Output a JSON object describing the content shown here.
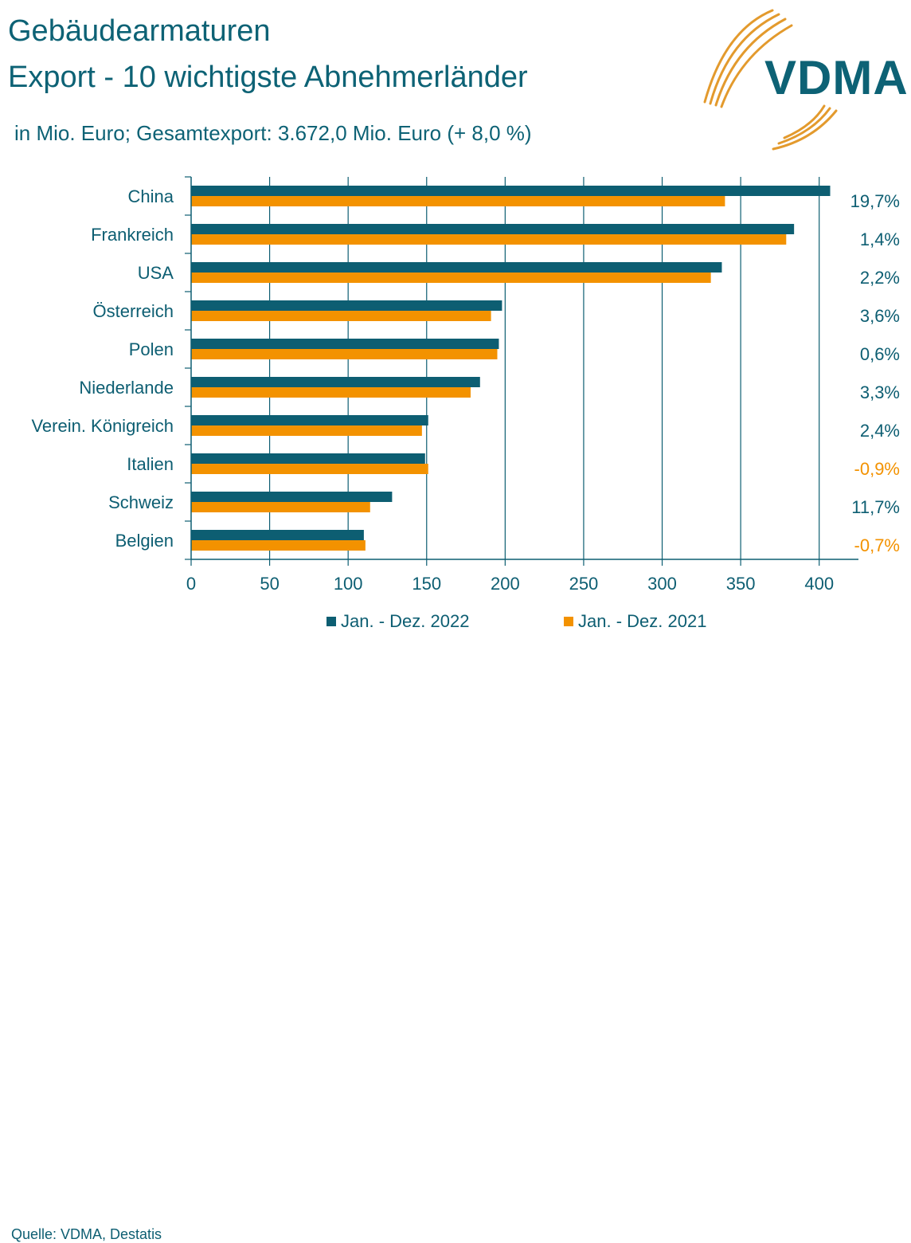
{
  "header": {
    "title_line1": "Gebäudearmaturen",
    "title_line2": "Export - 10 wichtigste Abnehmerländer",
    "subtitle": "in Mio. Euro; Gesamtexport: 3.672,0 Mio. Euro (+ 8,0 %)"
  },
  "logo": {
    "text": "VDMA",
    "icon": "vdma-arc-logo-icon"
  },
  "footer": {
    "source": "Quelle: VDMA, Destatis"
  },
  "colors": {
    "series_2022": "#0d5e72",
    "series_2021": "#f39200",
    "text": "#0d5e72",
    "negative_change": "#f39200",
    "grid": "#0d5e72"
  },
  "chart_data": {
    "type": "bar",
    "orientation": "horizontal",
    "categories": [
      "China",
      "Frankreich",
      "USA",
      "Österreich",
      "Polen",
      "Niederlande",
      "Verein. Königreich",
      "Italien",
      "Schweiz",
      "Belgien"
    ],
    "series": [
      {
        "name": "Jan. - Dez. 2022",
        "values": [
          407,
          384,
          338,
          198,
          196,
          184,
          151,
          149,
          128,
          110
        ]
      },
      {
        "name": "Jan. - Dez. 2021",
        "values": [
          340,
          379,
          331,
          191,
          195,
          178,
          147,
          151,
          114,
          111
        ]
      }
    ],
    "change_labels": [
      "19,7%",
      "1,4%",
      "2,2%",
      "3,6%",
      "0,6%",
      "3,3%",
      "2,4%",
      "-0,9%",
      "11,7%",
      "-0,7%"
    ],
    "x_ticks": [
      "0",
      "50",
      "100",
      "150",
      "200",
      "250",
      "300",
      "350",
      "400"
    ],
    "xlim": [
      0,
      425
    ],
    "grid": "vertical",
    "legend_position": "bottom"
  }
}
